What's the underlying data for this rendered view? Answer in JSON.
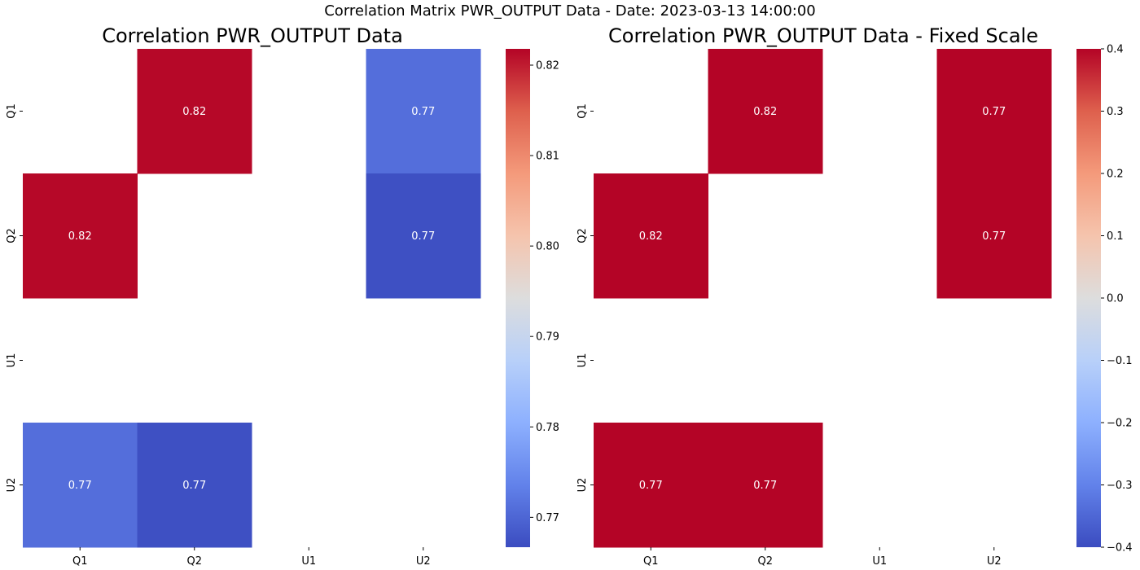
{
  "suptitle": "Correlation Matrix PWR_OUTPUT Data - Date: 2023-03-13 14:00:00",
  "chart_data": [
    {
      "type": "heatmap",
      "title": "Correlation PWR_OUTPUT Data",
      "x_labels": [
        "Q1",
        "Q2",
        "U1",
        "U2"
      ],
      "y_labels": [
        "Q1",
        "Q2",
        "U1",
        "U2"
      ],
      "values": [
        [
          null,
          0.8215,
          null,
          0.7711
        ],
        [
          0.8215,
          null,
          null,
          0.7672
        ],
        [
          null,
          null,
          null,
          null
        ],
        [
          0.7711,
          0.7672,
          null,
          null
        ]
      ],
      "annotations": [
        [
          "",
          "0.82",
          "",
          "0.77"
        ],
        [
          "0.82",
          "",
          "",
          "0.77"
        ],
        [
          "",
          "",
          "",
          ""
        ],
        [
          "0.77",
          "0.77",
          "",
          ""
        ]
      ],
      "colormap": "coolwarm",
      "colorbar": {
        "min": 0.7667,
        "max": 0.8218,
        "ticks": [
          0.77,
          0.78,
          0.79,
          0.8,
          0.81,
          0.82
        ],
        "tick_labels": [
          "0.77",
          "0.78",
          "0.79",
          "0.80",
          "0.81",
          "0.82"
        ]
      }
    },
    {
      "type": "heatmap",
      "title": "Correlation PWR_OUTPUT Data - Fixed Scale",
      "x_labels": [
        "Q1",
        "Q2",
        "U1",
        "U2"
      ],
      "y_labels": [
        "Q1",
        "Q2",
        "U1",
        "U2"
      ],
      "values": [
        [
          null,
          0.8215,
          null,
          0.7711
        ],
        [
          0.8215,
          null,
          null,
          0.7672
        ],
        [
          null,
          null,
          null,
          null
        ],
        [
          0.7711,
          0.7672,
          null,
          null
        ]
      ],
      "annotations": [
        [
          "",
          "0.82",
          "",
          "0.77"
        ],
        [
          "0.82",
          "",
          "",
          "0.77"
        ],
        [
          "",
          "",
          "",
          ""
        ],
        [
          "0.77",
          "0.77",
          "",
          ""
        ]
      ],
      "colormap": "coolwarm",
      "colorbar": {
        "min": -0.4,
        "max": 0.4,
        "ticks": [
          -0.4,
          -0.3,
          -0.2,
          -0.1,
          0.0,
          0.1,
          0.2,
          0.3,
          0.4
        ],
        "tick_labels": [
          "−0.4",
          "−0.3",
          "−0.2",
          "−0.1",
          "0.0",
          "0.1",
          "0.2",
          "0.3",
          "0.4"
        ]
      }
    }
  ]
}
